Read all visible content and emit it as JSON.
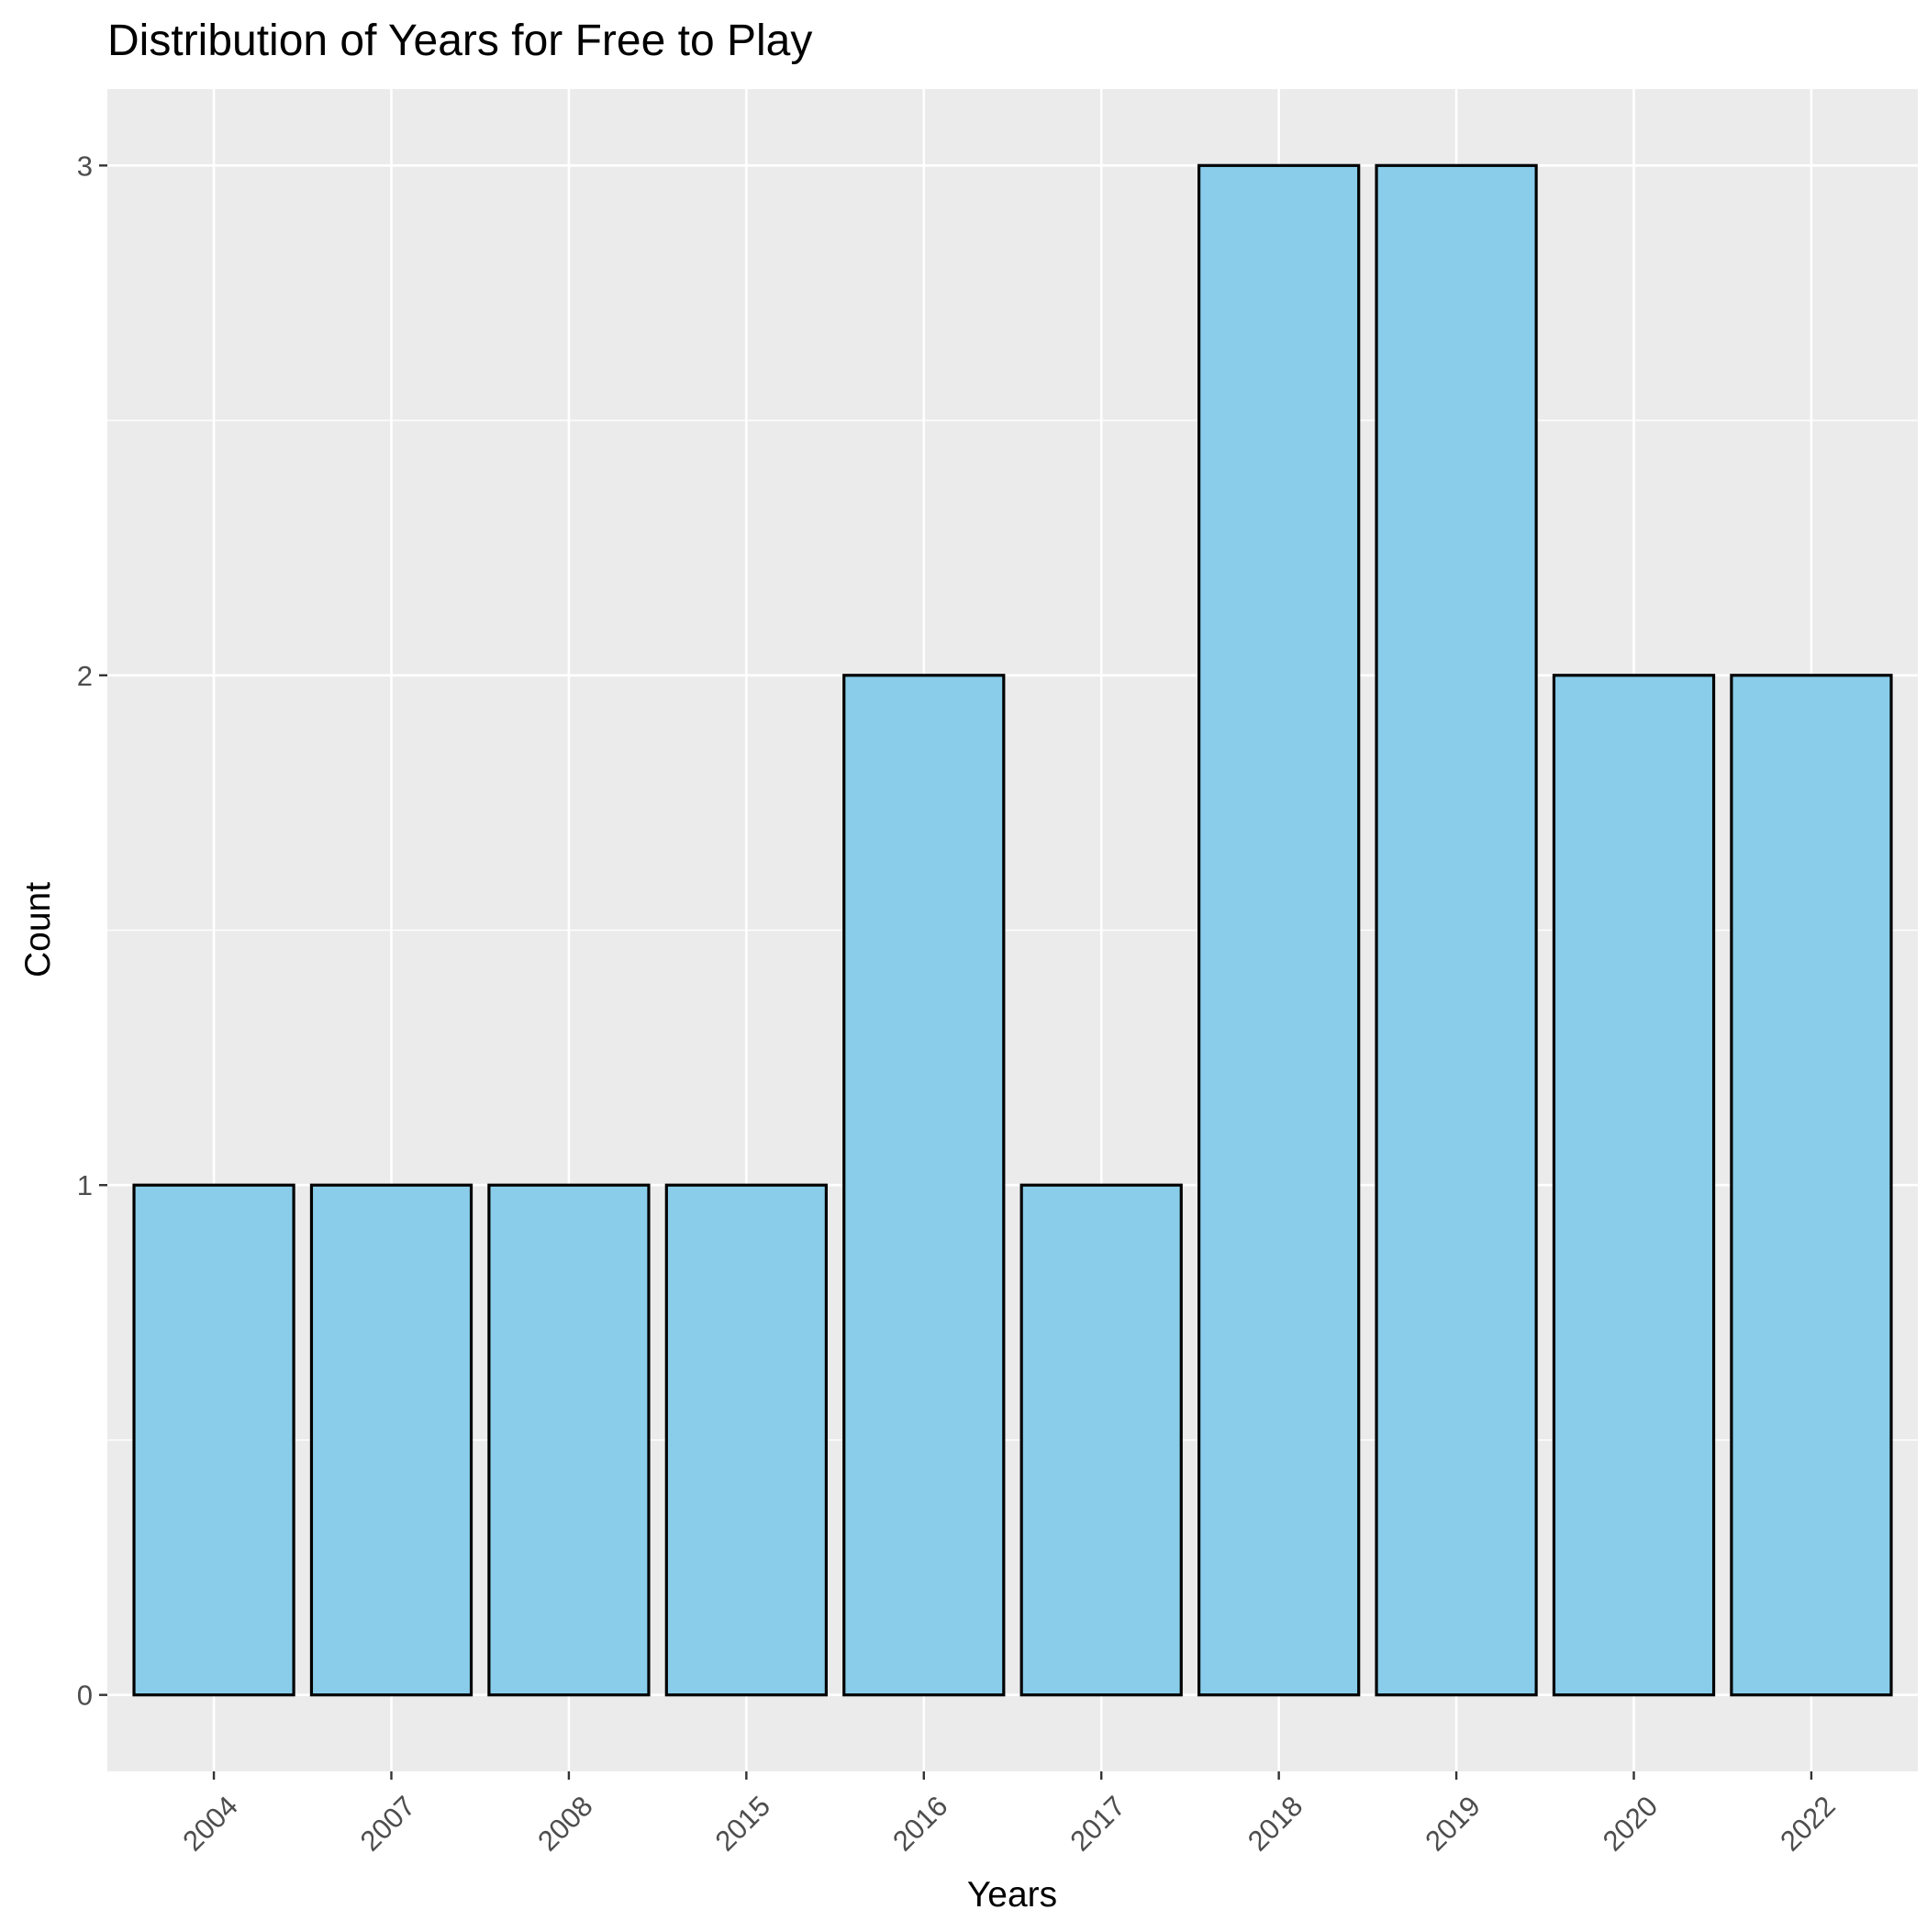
{
  "chart_data": {
    "type": "bar",
    "title": "Distribution of Years for Free to Play",
    "xlabel": "Years",
    "ylabel": "Count",
    "categories": [
      "2004",
      "2007",
      "2008",
      "2015",
      "2016",
      "2017",
      "2018",
      "2019",
      "2020",
      "2022"
    ],
    "values": [
      1,
      1,
      1,
      1,
      2,
      1,
      3,
      3,
      2,
      2
    ],
    "ylim": [
      -0.15,
      3.15
    ],
    "yticks": [
      0,
      1,
      2,
      3
    ],
    "grid": true,
    "legend": "none",
    "colors": {
      "bar_fill": "#89CDEA",
      "bar_stroke": "#000000",
      "panel_bg": "#EBEBEB",
      "grid": "#FFFFFF",
      "text": "#000000",
      "tick_text": "#4D4D4D"
    }
  }
}
